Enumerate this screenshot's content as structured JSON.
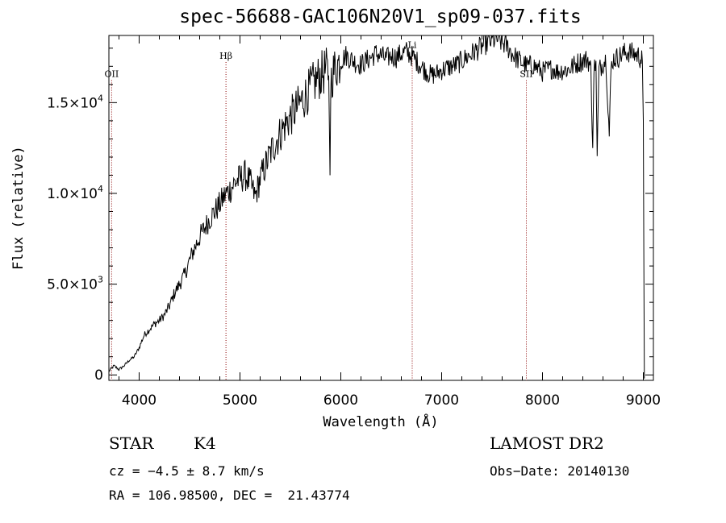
{
  "title": "spec-56688-GAC106N20V1_sp09-037.fits",
  "info": {
    "object_class": "STAR",
    "subclass": "K4",
    "survey": "LAMOST DR2",
    "cz": "cz = −4.5 ± 8.7 km/s",
    "obs_date": "Obs−Date: 20140130",
    "coords": "RA = 106.98500, DEC =  21.43774"
  },
  "chart_data": {
    "type": "line",
    "title": "spec-56688-GAC106N20V1_sp09-037.fits",
    "xlabel": "Wavelength (Å)",
    "ylabel": "Flux (relative)",
    "xlim": [
      3700,
      9100
    ],
    "ylim": [
      -300,
      18700
    ],
    "x_ticks": [
      4000,
      5000,
      6000,
      7000,
      8000,
      9000
    ],
    "x_tick_labels": [
      "4000",
      "5000",
      "6000",
      "7000",
      "8000",
      "9000"
    ],
    "y_ticks": [
      0,
      5000,
      10000,
      15000
    ],
    "y_tick_labels": [
      {
        "mantissa": "0",
        "exp": ""
      },
      {
        "mantissa": "5.0×10",
        "exp": "3"
      },
      {
        "mantissa": "1.0×10",
        "exp": "4"
      },
      {
        "mantissa": "1.5×10",
        "exp": "4"
      }
    ],
    "spectral_lines": [
      {
        "label": "OII",
        "wavelength": 3727,
        "label_flux": 16500
      },
      {
        "label": "Hβ",
        "wavelength": 4861,
        "label_flux": 17500
      },
      {
        "label": "Li",
        "wavelength": 6708,
        "label_flux": 18100
      },
      {
        "label": "SII",
        "wavelength": 7840,
        "label_flux": 16500
      }
    ],
    "line_color": "#000000",
    "marker_color": "#8b0000",
    "series": [
      {
        "name": "flux",
        "x": [
          3700,
          3750,
          3800,
          3850,
          3900,
          3950,
          4000,
          4050,
          4100,
          4150,
          4200,
          4250,
          4300,
          4350,
          4400,
          4450,
          4500,
          4550,
          4600,
          4650,
          4700,
          4750,
          4800,
          4850,
          4900,
          4950,
          5000,
          5050,
          5100,
          5150,
          5200,
          5250,
          5300,
          5350,
          5400,
          5450,
          5500,
          5550,
          5600,
          5650,
          5700,
          5750,
          5800,
          5850,
          5880,
          5893,
          5900,
          5920,
          5950,
          6000,
          6050,
          6100,
          6150,
          6200,
          6250,
          6300,
          6350,
          6400,
          6450,
          6500,
          6550,
          6600,
          6650,
          6700,
          6750,
          6800,
          6850,
          6900,
          6950,
          7000,
          7050,
          7100,
          7150,
          7200,
          7250,
          7300,
          7350,
          7400,
          7450,
          7500,
          7550,
          7600,
          7650,
          7700,
          7750,
          7800,
          7850,
          7900,
          7950,
          8000,
          8050,
          8100,
          8150,
          8200,
          8250,
          8300,
          8350,
          8400,
          8450,
          8480,
          8498,
          8510,
          8530,
          8542,
          8560,
          8600,
          8630,
          8662,
          8680,
          8700,
          8750,
          8800,
          8850,
          8900,
          8950,
          8990,
          9000,
          9010
        ],
        "values": [
          200,
          500,
          300,
          500,
          800,
          1000,
          1500,
          2200,
          2500,
          2800,
          3000,
          3300,
          3800,
          4500,
          5000,
          5500,
          6300,
          7000,
          7600,
          8100,
          8600,
          9000,
          9400,
          9900,
          10200,
          10600,
          10800,
          11000,
          10600,
          9800,
          10800,
          11500,
          12200,
          12800,
          13300,
          13800,
          14200,
          14600,
          15000,
          15400,
          15800,
          16200,
          16500,
          16800,
          16500,
          11000,
          16200,
          16600,
          17000,
          17300,
          17600,
          17400,
          17200,
          17100,
          17300,
          17500,
          17700,
          17600,
          17400,
          17600,
          17500,
          17700,
          17800,
          17600,
          17300,
          17000,
          16700,
          16500,
          16600,
          16800,
          16900,
          17000,
          17100,
          17300,
          17500,
          17700,
          17900,
          18100,
          18300,
          18400,
          18500,
          18300,
          18100,
          17700,
          17400,
          17200,
          17000,
          17100,
          16900,
          16700,
          16800,
          16900,
          16700,
          16800,
          16800,
          17000,
          17200,
          17300,
          17400,
          16800,
          12500,
          16800,
          17300,
          12000,
          16800,
          17200,
          17400,
          13200,
          16900,
          17400,
          17500,
          17700,
          17800,
          17700,
          17600,
          17300,
          14000,
          -200
        ]
      }
    ]
  }
}
